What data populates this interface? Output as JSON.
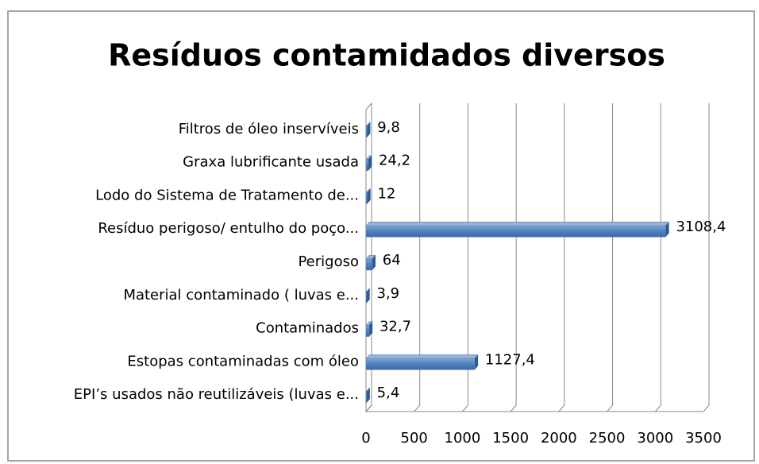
{
  "chart_data": {
    "type": "bar",
    "orientation": "horizontal",
    "title": "Resíduos contamidados diversos",
    "categories": [
      "Filtros de óleo inservíveis",
      "Graxa lubrificante usada",
      "Lodo do Sistema de Tratamento de...",
      "Resíduo perigoso/ entulho do poço...",
      "Perigoso",
      "Material contaminado ( luvas e...",
      "Contaminados",
      "Estopas contaminadas com óleo",
      "EPI’s usados não reutilizáveis (luvas e..."
    ],
    "values": [
      9.8,
      24.2,
      12,
      3108.4,
      64,
      3.9,
      32.7,
      1127.4,
      5.4
    ],
    "value_labels": [
      "9,8",
      "24,2",
      "12",
      "3108,4",
      "64",
      "3,9",
      "32,7",
      "1127,4",
      "5,4"
    ],
    "color": "#4f81bd",
    "xlim": [
      0,
      3500
    ],
    "xticks": [
      0,
      500,
      1000,
      1500,
      2000,
      2500,
      3000,
      3500
    ],
    "grid": true
  }
}
